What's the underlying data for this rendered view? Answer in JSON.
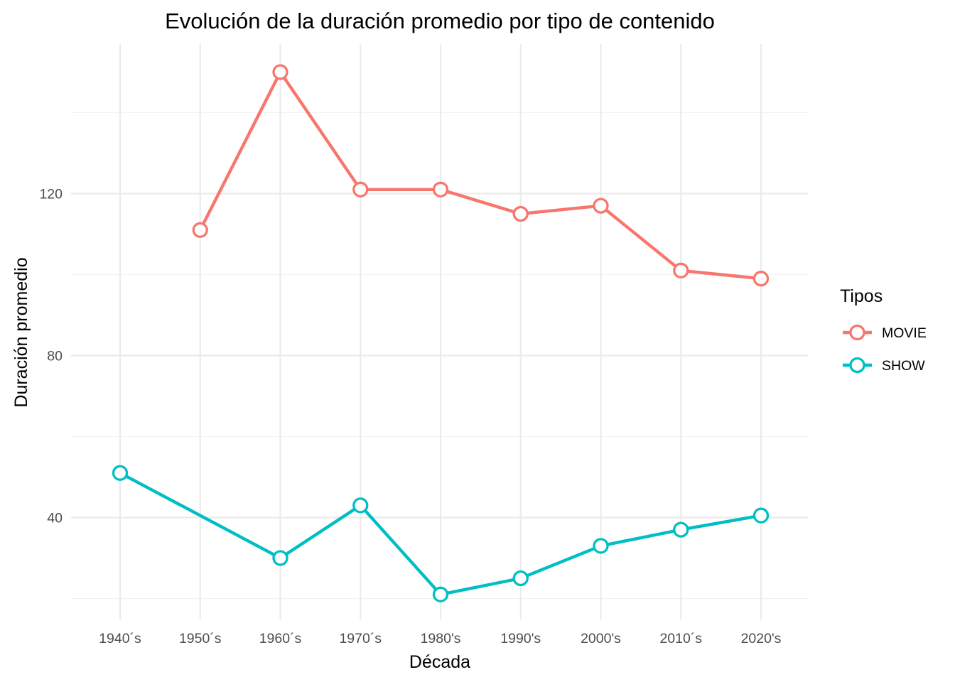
{
  "chart_data": {
    "type": "line",
    "title": "Evolución de la duración promedio por tipo de contenido",
    "xlabel": "Década",
    "ylabel": "Duración promedio",
    "categories": [
      "1940´s",
      "1950´s",
      "1960´s",
      "1970´s",
      "1980's",
      "1990's",
      "2000's",
      "2010´s",
      "2020's"
    ],
    "yticks": [
      40,
      80,
      120
    ],
    "ylim": [
      15,
      155
    ],
    "grid": true,
    "legend": {
      "title": "Tipos",
      "placement": "right"
    },
    "series": [
      {
        "name": "MOVIE",
        "color": "#F8766D",
        "values": [
          null,
          111,
          150,
          121,
          121,
          115,
          117,
          101,
          99
        ]
      },
      {
        "name": "SHOW",
        "color": "#00BFC4",
        "values": [
          51,
          null,
          30,
          43,
          21,
          25,
          33,
          37,
          40.5
        ]
      }
    ]
  }
}
